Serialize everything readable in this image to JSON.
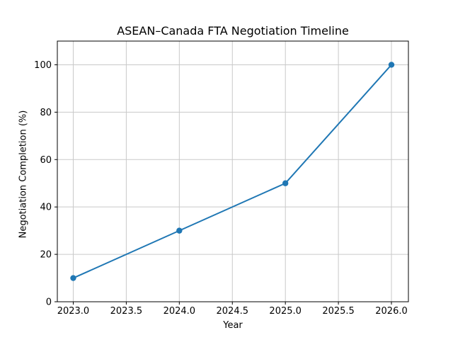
{
  "figure": {
    "background_color": "#ffffff"
  },
  "chart_data": {
    "type": "line",
    "title": "ASEAN–Canada FTA Negotiation Timeline",
    "xlabel": "Year",
    "ylabel": "Negotiation Completion (%)",
    "x": [
      2023,
      2024,
      2025,
      2026
    ],
    "values": [
      10,
      30,
      50,
      100
    ],
    "series": [
      {
        "name": "Negotiation Completion",
        "x": [
          2023,
          2024,
          2025,
          2026
        ],
        "values": [
          10,
          30,
          50,
          100
        ]
      }
    ],
    "x_tick_values": [
      2023.0,
      2023.5,
      2024.0,
      2024.5,
      2025.0,
      2025.5,
      2026.0
    ],
    "x_tick_labels": [
      "2023.0",
      "2023.5",
      "2024.0",
      "2024.5",
      "2025.0",
      "2025.5",
      "2026.0"
    ],
    "y_tick_values": [
      0,
      20,
      40,
      60,
      80,
      100
    ],
    "y_tick_labels": [
      "0",
      "20",
      "40",
      "60",
      "80",
      "100"
    ],
    "xlim": [
      2022.85,
      2026.16
    ],
    "ylim": [
      0,
      110
    ],
    "grid": true,
    "legend": null,
    "line_color": "#1f77b4",
    "marker": "circle",
    "grid_color": "#c9c9c9",
    "spine_color": "#000000",
    "text_color": "#000000"
  }
}
